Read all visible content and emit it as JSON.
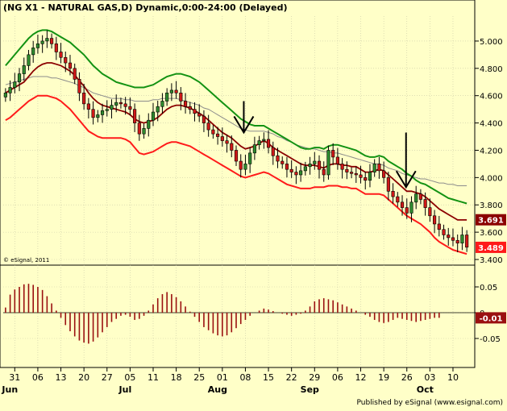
{
  "title": "(NG X1 - NATURAL GAS,D) Dynamic,0:00-24:00 (Delayed)",
  "copyright": "© eSignal, 2011",
  "footer": "Published by eSignal (www.esignal.com)",
  "colors": {
    "background": "#ffffc8",
    "up_candle": "#2e8b2e",
    "down_candle": "#d01818",
    "upper_band": "#139213",
    "middle_ma": "#8b0000",
    "lower_band": "#ff1a1a",
    "gray_ma": "#8c8c8c",
    "oscillator": "#9a1010"
  },
  "chart_data": [
    {
      "type": "candlestick",
      "panel": "price",
      "title": "(NG X1 - NATURAL GAS,D) Dynamic,0:00-24:00 (Delayed)",
      "y_ticks": [
        "5.000",
        "4.800",
        "4.600",
        "4.400",
        "4.200",
        "4.000",
        "3.800",
        "3.600",
        "3.400"
      ],
      "ylim": [
        3.4,
        5.1
      ],
      "x_ticks": [
        "31",
        "06",
        "13",
        "20",
        "27",
        "05",
        "11",
        "18",
        "25",
        "01",
        "08",
        "15",
        "22",
        "29",
        "06",
        "12",
        "19",
        "26",
        "03",
        "10"
      ],
      "months": [
        "Jun",
        "Jul",
        "Aug",
        "Sep",
        "Oct"
      ],
      "last_price_labels": [
        {
          "value": "3.691",
          "series": "middle_ma"
        },
        {
          "value": "3.489",
          "series": "close"
        }
      ],
      "annotations": [
        {
          "type": "down-arrow",
          "near_tick": "08"
        },
        {
          "type": "down-arrow",
          "near_tick": "26"
        }
      ],
      "close": [
        4.62,
        4.66,
        4.7,
        4.76,
        4.82,
        4.9,
        4.95,
        4.98,
        5.0,
        5.02,
        4.98,
        4.92,
        4.88,
        4.84,
        4.8,
        4.72,
        4.62,
        4.54,
        4.5,
        4.44,
        4.46,
        4.49,
        4.5,
        4.53,
        4.55,
        4.54,
        4.52,
        4.5,
        4.4,
        4.32,
        4.36,
        4.42,
        4.48,
        4.52,
        4.56,
        4.62,
        4.64,
        4.62,
        4.56,
        4.52,
        4.5,
        4.47,
        4.45,
        4.4,
        4.35,
        4.32,
        4.3,
        4.27,
        4.25,
        4.2,
        4.12,
        4.06,
        4.1,
        4.18,
        4.24,
        4.27,
        4.28,
        4.22,
        4.16,
        4.12,
        4.1,
        4.06,
        4.04,
        4.02,
        4.05,
        4.08,
        4.1,
        4.12,
        4.06,
        4.02,
        4.2,
        4.15,
        4.1,
        4.06,
        4.04,
        4.03,
        4.02,
        4.0,
        3.98,
        4.04,
        4.1,
        4.05,
        4.0,
        3.9,
        3.86,
        3.82,
        3.78,
        3.74,
        3.82,
        3.88,
        3.84,
        3.78,
        3.72,
        3.66,
        3.62,
        3.58,
        3.56,
        3.54,
        3.52,
        3.58,
        3.49
      ],
      "middle_ma": [
        4.62,
        4.64,
        4.66,
        4.68,
        4.7,
        4.74,
        4.78,
        4.81,
        4.83,
        4.84,
        4.84,
        4.83,
        4.82,
        4.8,
        4.78,
        4.75,
        4.71,
        4.67,
        4.62,
        4.58,
        4.55,
        4.53,
        4.52,
        4.51,
        4.5,
        4.49,
        4.48,
        4.46,
        4.43,
        4.41,
        4.4,
        4.41,
        4.42,
        4.44,
        4.47,
        4.5,
        4.52,
        4.53,
        4.53,
        4.52,
        4.51,
        4.49,
        4.47,
        4.45,
        4.42,
        4.39,
        4.36,
        4.33,
        4.31,
        4.29,
        4.26,
        4.23,
        4.21,
        4.22,
        4.23,
        4.25,
        4.27,
        4.25,
        4.22,
        4.2,
        4.18,
        4.16,
        4.14,
        4.12,
        4.1,
        4.09,
        4.09,
        4.09,
        4.08,
        4.07,
        4.09,
        4.1,
        4.1,
        4.09,
        4.09,
        4.08,
        4.08,
        4.06,
        4.04,
        4.04,
        4.05,
        4.06,
        4.05,
        4.02,
        3.99,
        3.96,
        3.93,
        3.9,
        3.9,
        3.89,
        3.88,
        3.86,
        3.83,
        3.8,
        3.77,
        3.75,
        3.73,
        3.71,
        3.69,
        3.69,
        3.69
      ],
      "upper_band": [
        4.82,
        4.86,
        4.9,
        4.94,
        4.98,
        5.02,
        5.05,
        5.07,
        5.08,
        5.08,
        5.07,
        5.05,
        5.03,
        5.01,
        4.99,
        4.96,
        4.93,
        4.9,
        4.86,
        4.82,
        4.79,
        4.76,
        4.74,
        4.72,
        4.7,
        4.69,
        4.68,
        4.67,
        4.66,
        4.66,
        4.66,
        4.67,
        4.68,
        4.7,
        4.72,
        4.74,
        4.75,
        4.76,
        4.76,
        4.75,
        4.74,
        4.72,
        4.7,
        4.67,
        4.64,
        4.61,
        4.58,
        4.55,
        4.52,
        4.49,
        4.46,
        4.43,
        4.41,
        4.39,
        4.38,
        4.38,
        4.38,
        4.36,
        4.34,
        4.32,
        4.3,
        4.28,
        4.26,
        4.24,
        4.22,
        4.21,
        4.21,
        4.22,
        4.22,
        4.21,
        4.23,
        4.24,
        4.24,
        4.23,
        4.22,
        4.21,
        4.2,
        4.18,
        4.16,
        4.15,
        4.15,
        4.16,
        4.15,
        4.12,
        4.1,
        4.08,
        4.06,
        4.03,
        4.01,
        3.98,
        3.96,
        3.95,
        3.93,
        3.91,
        3.89,
        3.87,
        3.85,
        3.84,
        3.83,
        3.82,
        3.81
      ],
      "lower_band": [
        4.42,
        4.44,
        4.47,
        4.5,
        4.53,
        4.56,
        4.58,
        4.6,
        4.6,
        4.6,
        4.59,
        4.58,
        4.56,
        4.53,
        4.5,
        4.46,
        4.42,
        4.38,
        4.34,
        4.32,
        4.3,
        4.29,
        4.29,
        4.29,
        4.29,
        4.29,
        4.28,
        4.26,
        4.22,
        4.18,
        4.17,
        4.18,
        4.19,
        4.21,
        4.23,
        4.25,
        4.26,
        4.26,
        4.25,
        4.24,
        4.23,
        4.21,
        4.19,
        4.17,
        4.15,
        4.13,
        4.11,
        4.09,
        4.07,
        4.05,
        4.03,
        4.01,
        4.0,
        4.01,
        4.02,
        4.03,
        4.04,
        4.03,
        4.01,
        3.99,
        3.97,
        3.95,
        3.94,
        3.93,
        3.92,
        3.92,
        3.92,
        3.93,
        3.93,
        3.93,
        3.94,
        3.94,
        3.94,
        3.93,
        3.93,
        3.92,
        3.92,
        3.9,
        3.88,
        3.88,
        3.88,
        3.88,
        3.87,
        3.84,
        3.81,
        3.78,
        3.75,
        3.72,
        3.7,
        3.68,
        3.66,
        3.63,
        3.6,
        3.56,
        3.53,
        3.51,
        3.49,
        3.47,
        3.46,
        3.45,
        3.44
      ],
      "gray_ma": [
        4.68,
        4.69,
        4.7,
        4.71,
        4.72,
        4.73,
        4.74,
        4.74,
        4.74,
        4.74,
        4.73,
        4.73,
        4.72,
        4.71,
        4.7,
        4.69,
        4.67,
        4.66,
        4.64,
        4.62,
        4.61,
        4.6,
        4.59,
        4.58,
        4.58,
        4.58,
        4.57,
        4.57,
        4.56,
        4.56,
        4.56,
        4.56,
        4.57,
        4.57,
        4.58,
        4.58,
        4.58,
        4.58,
        4.57,
        4.56,
        4.55,
        4.54,
        4.53,
        4.51,
        4.5,
        4.48,
        4.46,
        4.44,
        4.42,
        4.4,
        4.38,
        4.36,
        4.35,
        4.34,
        4.34,
        4.34,
        4.34,
        4.33,
        4.32,
        4.3,
        4.29,
        4.27,
        4.26,
        4.24,
        4.23,
        4.22,
        4.21,
        4.21,
        4.2,
        4.19,
        4.19,
        4.18,
        4.18,
        4.17,
        4.16,
        4.15,
        4.14,
        4.13,
        4.12,
        4.11,
        4.1,
        4.1,
        4.09,
        4.07,
        4.06,
        4.05,
        4.03,
        4.02,
        4.01,
        4.0,
        3.99,
        3.99,
        3.98,
        3.97,
        3.96,
        3.96,
        3.95,
        3.95,
        3.94,
        3.94,
        3.94
      ]
    },
    {
      "type": "bar",
      "panel": "oscillator",
      "y_ticks": [
        "0.05",
        "0",
        "-0.05"
      ],
      "ylim": [
        -0.075,
        0.075
      ],
      "last_value_label": "-0.01",
      "values": [
        0.01,
        0.035,
        0.045,
        0.05,
        0.055,
        0.056,
        0.054,
        0.05,
        0.044,
        0.032,
        0.018,
        0.004,
        -0.01,
        -0.024,
        -0.036,
        -0.046,
        -0.054,
        -0.058,
        -0.06,
        -0.056,
        -0.048,
        -0.038,
        -0.028,
        -0.018,
        -0.012,
        -0.006,
        -0.004,
        -0.008,
        -0.014,
        -0.012,
        -0.006,
        0.004,
        0.016,
        0.028,
        0.036,
        0.04,
        0.036,
        0.03,
        0.022,
        0.012,
        0.002,
        -0.008,
        -0.018,
        -0.028,
        -0.034,
        -0.04,
        -0.044,
        -0.046,
        -0.044,
        -0.038,
        -0.03,
        -0.022,
        -0.014,
        -0.006,
        0.0,
        0.004,
        0.008,
        0.006,
        0.003,
        0.0,
        -0.002,
        -0.004,
        -0.006,
        -0.004,
        -0.002,
        0.004,
        0.012,
        0.022,
        0.026,
        0.028,
        0.026,
        0.024,
        0.02,
        0.016,
        0.012,
        0.008,
        0.004,
        0.0,
        -0.004,
        -0.008,
        -0.014,
        -0.018,
        -0.02,
        -0.018,
        -0.014,
        -0.01,
        -0.012,
        -0.014,
        -0.016,
        -0.018,
        -0.016,
        -0.014,
        -0.012,
        -0.01,
        -0.01
      ]
    }
  ]
}
